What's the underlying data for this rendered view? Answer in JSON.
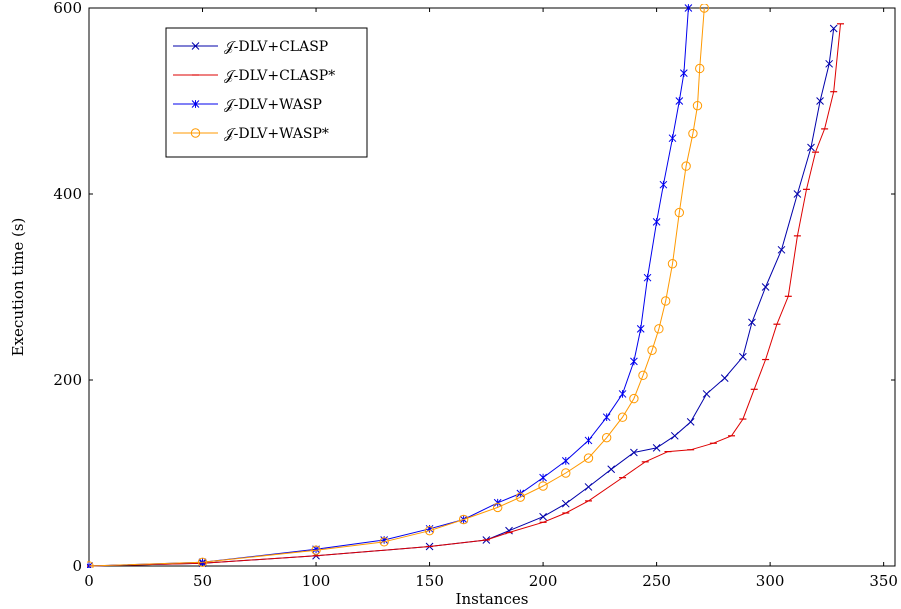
{
  "chart_data": {
    "type": "line",
    "title": "",
    "xlabel": "Instances",
    "ylabel": "Execution time (s)",
    "xlim": [
      0,
      355
    ],
    "ylim": [
      0,
      600
    ],
    "xticks": [
      0,
      50,
      100,
      150,
      200,
      250,
      300,
      350
    ],
    "yticks": [
      0,
      200,
      400,
      600
    ],
    "grid": false,
    "legend_position": "top-left",
    "series": [
      {
        "name": "𝒥-DLV+CLASP",
        "color": "#0000aa",
        "marker": "x",
        "points": [
          [
            0,
            0
          ],
          [
            50,
            3
          ],
          [
            100,
            11
          ],
          [
            150,
            21
          ],
          [
            175,
            28
          ],
          [
            185,
            38
          ],
          [
            200,
            53
          ],
          [
            210,
            67
          ],
          [
            220,
            85
          ],
          [
            230,
            104
          ],
          [
            240,
            122
          ],
          [
            250,
            127
          ],
          [
            258,
            140
          ],
          [
            265,
            155
          ],
          [
            272,
            185
          ],
          [
            280,
            202
          ],
          [
            288,
            225
          ],
          [
            292,
            262
          ],
          [
            298,
            300
          ],
          [
            305,
            340
          ],
          [
            312,
            400
          ],
          [
            318,
            450
          ],
          [
            322,
            500
          ],
          [
            326,
            540
          ],
          [
            328,
            578
          ]
        ]
      },
      {
        "name": "𝒥-DLV+CLASP*",
        "color": "#dd0000",
        "marker": "dash",
        "points": [
          [
            0,
            0
          ],
          [
            50,
            3
          ],
          [
            100,
            11
          ],
          [
            150,
            21
          ],
          [
            175,
            28
          ],
          [
            185,
            36
          ],
          [
            200,
            47
          ],
          [
            210,
            57
          ],
          [
            220,
            70
          ],
          [
            235,
            95
          ],
          [
            245,
            112
          ],
          [
            255,
            123
          ],
          [
            265,
            125
          ],
          [
            275,
            132
          ],
          [
            283,
            140
          ],
          [
            288,
            158
          ],
          [
            293,
            190
          ],
          [
            298,
            222
          ],
          [
            303,
            260
          ],
          [
            308,
            290
          ],
          [
            312,
            355
          ],
          [
            316,
            405
          ],
          [
            320,
            445
          ],
          [
            324,
            470
          ],
          [
            328,
            510
          ],
          [
            331,
            583
          ]
        ]
      },
      {
        "name": "𝒥-DLV+WASP",
        "color": "#0000ee",
        "marker": "star",
        "points": [
          [
            0,
            0
          ],
          [
            50,
            4
          ],
          [
            100,
            18
          ],
          [
            130,
            28
          ],
          [
            150,
            40
          ],
          [
            165,
            50
          ],
          [
            180,
            68
          ],
          [
            190,
            78
          ],
          [
            200,
            95
          ],
          [
            210,
            113
          ],
          [
            220,
            135
          ],
          [
            228,
            160
          ],
          [
            235,
            185
          ],
          [
            240,
            220
          ],
          [
            243,
            255
          ],
          [
            246,
            310
          ],
          [
            250,
            370
          ],
          [
            253,
            410
          ],
          [
            257,
            460
          ],
          [
            260,
            500
          ],
          [
            262,
            530
          ],
          [
            264,
            600
          ]
        ]
      },
      {
        "name": "𝒥-DLV+WASP*",
        "color": "#ff9900",
        "marker": "circle",
        "points": [
          [
            0,
            0
          ],
          [
            50,
            4
          ],
          [
            100,
            17
          ],
          [
            130,
            26
          ],
          [
            150,
            38
          ],
          [
            165,
            50
          ],
          [
            180,
            63
          ],
          [
            190,
            74
          ],
          [
            200,
            86
          ],
          [
            210,
            100
          ],
          [
            220,
            116
          ],
          [
            228,
            138
          ],
          [
            235,
            160
          ],
          [
            240,
            180
          ],
          [
            244,
            205
          ],
          [
            248,
            232
          ],
          [
            251,
            255
          ],
          [
            254,
            285
          ],
          [
            257,
            325
          ],
          [
            260,
            380
          ],
          [
            263,
            430
          ],
          [
            266,
            465
          ],
          [
            268,
            495
          ],
          [
            269,
            535
          ],
          [
            271,
            600
          ]
        ]
      }
    ]
  }
}
